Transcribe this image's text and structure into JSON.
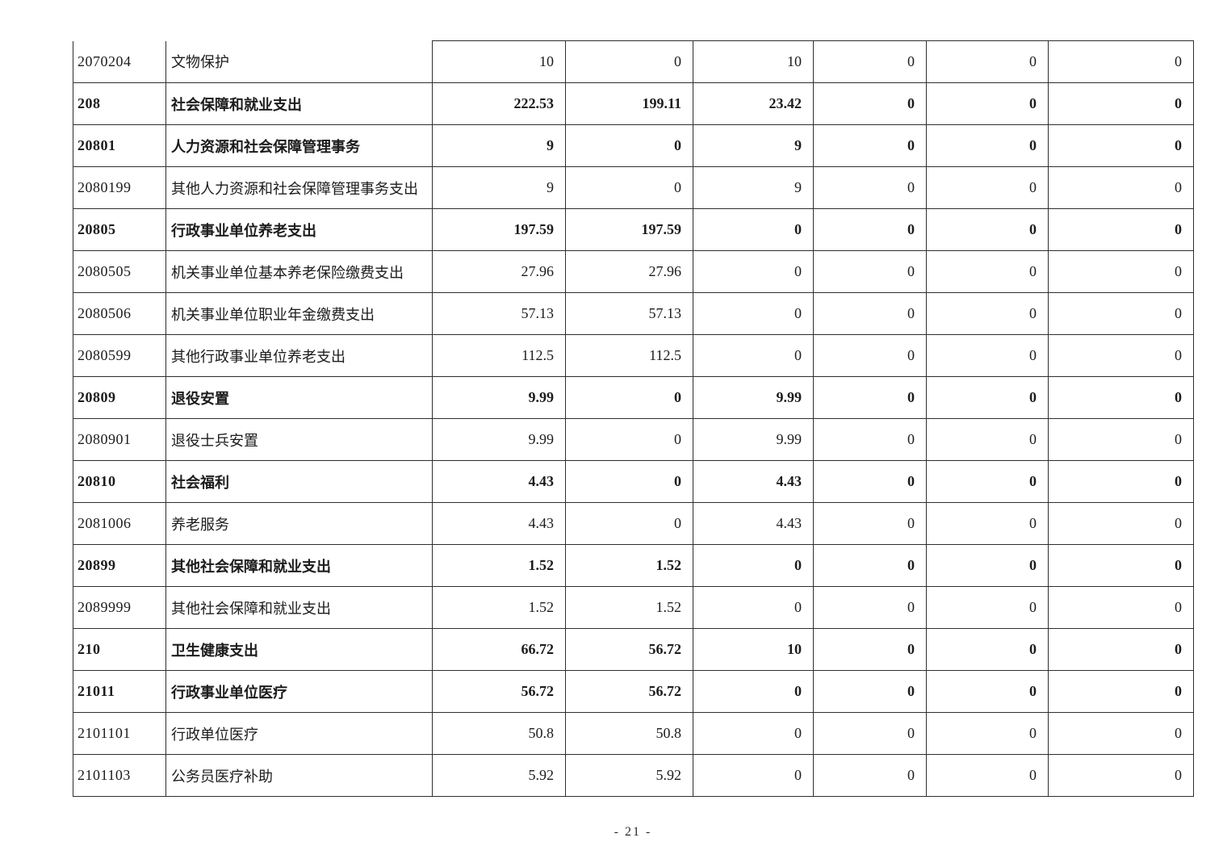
{
  "page": {
    "footer": "- 21 -"
  },
  "table": {
    "description": "Government budget expenditure table by functional classification (continuation page)",
    "columns": [
      "code",
      "name",
      "value1",
      "value2",
      "value3",
      "value4",
      "value5",
      "value6"
    ],
    "rows": [
      {
        "code": "2070204",
        "name": "文物保护",
        "values": [
          "10",
          "0",
          "10",
          "0",
          "0",
          "0"
        ],
        "bold": false
      },
      {
        "code": "208",
        "name": "社会保障和就业支出",
        "values": [
          "222.53",
          "199.11",
          "23.42",
          "0",
          "0",
          "0"
        ],
        "bold": true
      },
      {
        "code": "20801",
        "name": "人力资源和社会保障管理事务",
        "values": [
          "9",
          "0",
          "9",
          "0",
          "0",
          "0"
        ],
        "bold": true
      },
      {
        "code": "2080199",
        "name": "其他人力资源和社会保障管理事务支出",
        "values": [
          "9",
          "0",
          "9",
          "0",
          "0",
          "0"
        ],
        "bold": false
      },
      {
        "code": "20805",
        "name": "行政事业单位养老支出",
        "values": [
          "197.59",
          "197.59",
          "0",
          "0",
          "0",
          "0"
        ],
        "bold": true
      },
      {
        "code": "2080505",
        "name": "机关事业单位基本养老保险缴费支出",
        "values": [
          "27.96",
          "27.96",
          "0",
          "0",
          "0",
          "0"
        ],
        "bold": false
      },
      {
        "code": "2080506",
        "name": "机关事业单位职业年金缴费支出",
        "values": [
          "57.13",
          "57.13",
          "0",
          "0",
          "0",
          "0"
        ],
        "bold": false
      },
      {
        "code": "2080599",
        "name": "其他行政事业单位养老支出",
        "values": [
          "112.5",
          "112.5",
          "0",
          "0",
          "0",
          "0"
        ],
        "bold": false
      },
      {
        "code": "20809",
        "name": "退役安置",
        "values": [
          "9.99",
          "0",
          "9.99",
          "0",
          "0",
          "0"
        ],
        "bold": true
      },
      {
        "code": "2080901",
        "name": "退役士兵安置",
        "values": [
          "9.99",
          "0",
          "9.99",
          "0",
          "0",
          "0"
        ],
        "bold": false
      },
      {
        "code": "20810",
        "name": "社会福利",
        "values": [
          "4.43",
          "0",
          "4.43",
          "0",
          "0",
          "0"
        ],
        "bold": true
      },
      {
        "code": "2081006",
        "name": "养老服务",
        "values": [
          "4.43",
          "0",
          "4.43",
          "0",
          "0",
          "0"
        ],
        "bold": false
      },
      {
        "code": "20899",
        "name": "其他社会保障和就业支出",
        "values": [
          "1.52",
          "1.52",
          "0",
          "0",
          "0",
          "0"
        ],
        "bold": true
      },
      {
        "code": "2089999",
        "name": "其他社会保障和就业支出",
        "values": [
          "1.52",
          "1.52",
          "0",
          "0",
          "0",
          "0"
        ],
        "bold": false
      },
      {
        "code": "210",
        "name": "卫生健康支出",
        "values": [
          "66.72",
          "56.72",
          "10",
          "0",
          "0",
          "0"
        ],
        "bold": true
      },
      {
        "code": "21011",
        "name": "行政事业单位医疗",
        "values": [
          "56.72",
          "56.72",
          "0",
          "0",
          "0",
          "0"
        ],
        "bold": true
      },
      {
        "code": "2101101",
        "name": "行政单位医疗",
        "values": [
          "50.8",
          "50.8",
          "0",
          "0",
          "0",
          "0"
        ],
        "bold": false
      },
      {
        "code": "2101103",
        "name": "公务员医疗补助",
        "values": [
          "5.92",
          "5.92",
          "0",
          "0",
          "0",
          "0"
        ],
        "bold": false
      }
    ]
  }
}
